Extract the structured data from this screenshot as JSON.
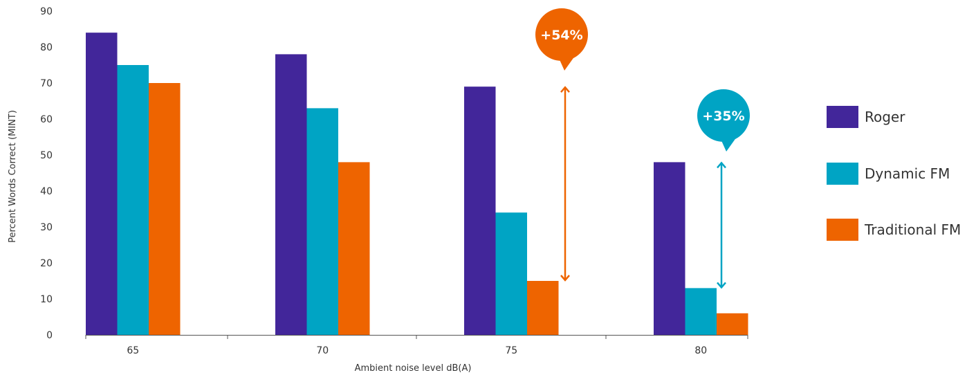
{
  "chart_data": {
    "type": "bar",
    "xlabel": "Ambient noise level dB(A)",
    "ylabel": "Percent Words Correct (MINT)",
    "categories": [
      "65",
      "70",
      "75",
      "80"
    ],
    "ylim": [
      0,
      90
    ],
    "yticks": [
      0,
      10,
      20,
      30,
      40,
      50,
      60,
      70,
      80,
      90
    ],
    "grid": false,
    "legend_position": "right",
    "series": [
      {
        "name": "Roger",
        "color": "#42269a",
        "values": [
          84,
          78,
          69,
          48
        ]
      },
      {
        "name": "Dynamic FM",
        "color": "#00a4c4",
        "values": [
          75,
          63,
          34,
          13
        ]
      },
      {
        "name": "Traditional FM",
        "color": "#ee6400",
        "values": [
          70,
          48,
          15,
          6
        ]
      }
    ],
    "annotations": [
      {
        "text": "+54%",
        "category": "75",
        "from": 15,
        "to": 69,
        "color": "#ee6400"
      },
      {
        "text": "+35%",
        "category": "80",
        "from": 13,
        "to": 48,
        "color": "#00a4c4"
      }
    ]
  }
}
